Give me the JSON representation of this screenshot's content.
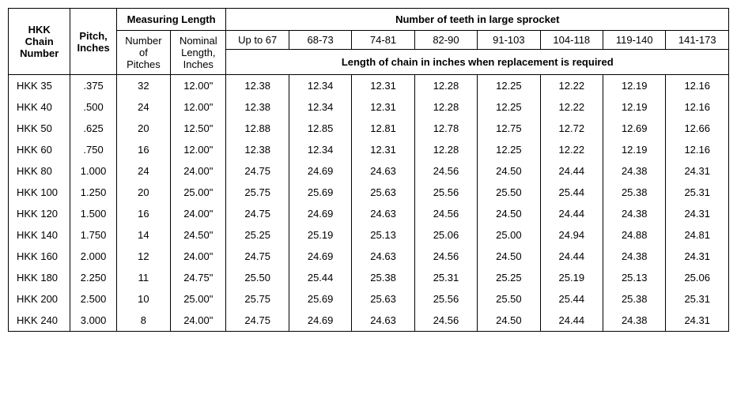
{
  "headers": {
    "chain_number": "HKK Chain Number",
    "pitch": "Pitch, Inches",
    "measuring_length": "Measuring Length",
    "number_of_pitches": "Number of Pitches",
    "nominal_length": "Nominal Length, Inches",
    "teeth_heading": "Number of teeth in large sprocket",
    "replacement_heading": "Length of chain in inches when replacement is required",
    "teeth_ranges": [
      "Up to 67",
      "68-73",
      "74-81",
      "82-90",
      "91-103",
      "104-118",
      "119-140",
      "141-173"
    ]
  },
  "rows": [
    {
      "chain": "HKK 35",
      "pitch": ".375",
      "npitch": "32",
      "nomlen": "12.00\"",
      "vals": [
        "12.38",
        "12.34",
        "12.31",
        "12.28",
        "12.25",
        "12.22",
        "12.19",
        "12.16"
      ]
    },
    {
      "chain": "HKK 40",
      "pitch": ".500",
      "npitch": "24",
      "nomlen": "12.00\"",
      "vals": [
        "12.38",
        "12.34",
        "12.31",
        "12.28",
        "12.25",
        "12.22",
        "12.19",
        "12.16"
      ]
    },
    {
      "chain": "HKK 50",
      "pitch": ".625",
      "npitch": "20",
      "nomlen": "12.50\"",
      "vals": [
        "12.88",
        "12.85",
        "12.81",
        "12.78",
        "12.75",
        "12.72",
        "12.69",
        "12.66"
      ]
    },
    {
      "chain": "HKK 60",
      "pitch": ".750",
      "npitch": "16",
      "nomlen": "12.00\"",
      "vals": [
        "12.38",
        "12.34",
        "12.31",
        "12.28",
        "12.25",
        "12.22",
        "12.19",
        "12.16"
      ]
    },
    {
      "chain": "HKK 80",
      "pitch": "1.000",
      "npitch": "24",
      "nomlen": "24.00\"",
      "vals": [
        "24.75",
        "24.69",
        "24.63",
        "24.56",
        "24.50",
        "24.44",
        "24.38",
        "24.31"
      ]
    },
    {
      "chain": "HKK 100",
      "pitch": "1.250",
      "npitch": "20",
      "nomlen": "25.00\"",
      "vals": [
        "25.75",
        "25.69",
        "25.63",
        "25.56",
        "25.50",
        "25.44",
        "25.38",
        "25.31"
      ]
    },
    {
      "chain": "HKK 120",
      "pitch": "1.500",
      "npitch": "16",
      "nomlen": "24.00\"",
      "vals": [
        "24.75",
        "24.69",
        "24.63",
        "24.56",
        "24.50",
        "24.44",
        "24.38",
        "24.31"
      ]
    },
    {
      "chain": "HKK 140",
      "pitch": "1.750",
      "npitch": "14",
      "nomlen": "24.50\"",
      "vals": [
        "25.25",
        "25.19",
        "25.13",
        "25.06",
        "25.00",
        "24.94",
        "24.88",
        "24.81"
      ]
    },
    {
      "chain": "HKK 160",
      "pitch": "2.000",
      "npitch": "12",
      "nomlen": "24.00\"",
      "vals": [
        "24.75",
        "24.69",
        "24.63",
        "24.56",
        "24.50",
        "24.44",
        "24.38",
        "24.31"
      ]
    },
    {
      "chain": "HKK 180",
      "pitch": "2.250",
      "npitch": "11",
      "nomlen": "24.75\"",
      "vals": [
        "25.50",
        "25.44",
        "25.38",
        "25.31",
        "25.25",
        "25.19",
        "25.13",
        "25.06"
      ]
    },
    {
      "chain": "HKK 200",
      "pitch": "2.500",
      "npitch": "10",
      "nomlen": "25.00\"",
      "vals": [
        "25.75",
        "25.69",
        "25.63",
        "25.56",
        "25.50",
        "25.44",
        "25.38",
        "25.31"
      ]
    },
    {
      "chain": "HKK 240",
      "pitch": "3.000",
      "npitch": "8",
      "nomlen": "24.00\"",
      "vals": [
        "24.75",
        "24.69",
        "24.63",
        "24.56",
        "24.50",
        "24.44",
        "24.38",
        "24.31"
      ]
    }
  ]
}
